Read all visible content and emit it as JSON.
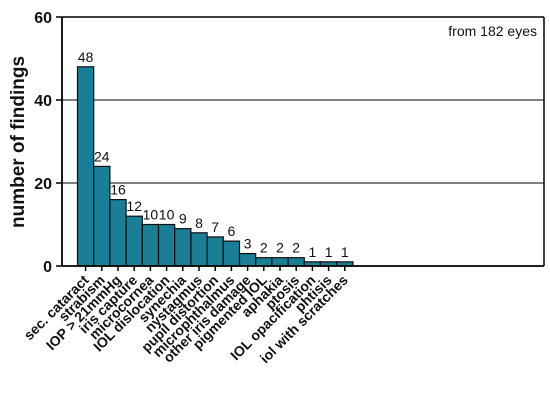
{
  "chart_data": {
    "type": "bar",
    "title": "",
    "xlabel": "",
    "ylabel": "number of findings",
    "annotation": "from 182 eyes",
    "ylim": [
      0,
      60
    ],
    "yticks": [
      0,
      20,
      40,
      60
    ],
    "grid": "horizontal",
    "bar_color": "#1a7f96",
    "categories": [
      "sec. cataract",
      "strabism",
      "IOP > 21mmHg",
      "iris capture",
      "microcornea",
      "IOL dislocation",
      "synechia",
      "nystagmus",
      "pupil distortion",
      "microphthalmus",
      "other iris damage",
      "pigmented IOL",
      "aphakia",
      "ptosis",
      "IOL opacification",
      "phtisis",
      "iol with scratches"
    ],
    "values": [
      48,
      24,
      16,
      12,
      10,
      10,
      9,
      8,
      7,
      6,
      3,
      2,
      2,
      2,
      1,
      1,
      1
    ]
  }
}
